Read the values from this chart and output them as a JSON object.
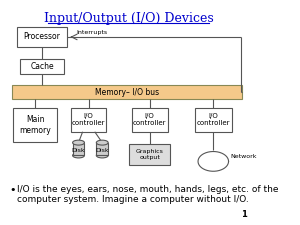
{
  "title": "Input/Output (I/O) Devices",
  "title_color": "#0000CC",
  "title_fontsize": 9,
  "bg_color": "#FFFFFF",
  "box_edge_color": "#555555",
  "box_face_color": "#FFFFFF",
  "bus_face_color": "#F5C98A",
  "bus_edge_color": "#888855",
  "bus_label": "Memory– I/O bus",
  "processor_label": "Processor",
  "cache_label": "Cache",
  "main_memory_label": "Main\nmemory",
  "io_controller_label": "I/O\ncontroller",
  "disk1_label": "Disk",
  "disk2_label": "Disk",
  "graphics_label": "Graphics\noutput",
  "network_label": "Network",
  "interrupts_label": "Interrupts",
  "bullet_text": "I/O is the eyes, ears, nose, mouth, hands, legs, etc. of the\ncomputer system. Imagine a computer without I/O.",
  "bullet_fontsize": 6.5,
  "page_number": "1",
  "line_color": "#555555"
}
